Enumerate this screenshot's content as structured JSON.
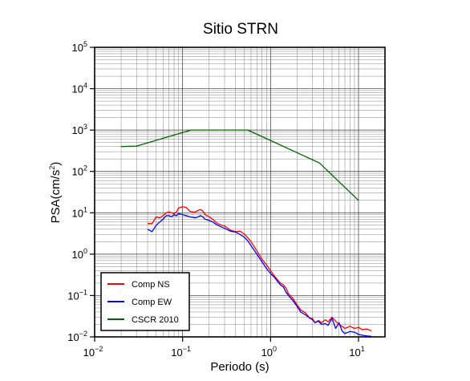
{
  "chart_data": {
    "type": "line",
    "title": "Sitio STRN",
    "xlabel": "Periodo (s)",
    "ylabel": "PSA(cm/s2)",
    "x_scale": "log",
    "y_scale": "log",
    "xlim": [
      0.01,
      20
    ],
    "ylim": [
      0.01,
      100000
    ],
    "x_ticks": [
      0.01,
      0.1,
      1,
      10
    ],
    "y_ticks": [
      0.01,
      0.1,
      1,
      10,
      100,
      1000,
      10000,
      100000
    ],
    "grid": true,
    "legend_position": "bottom-left",
    "series": [
      {
        "name": "Comp NS",
        "color": "#ff0000",
        "points": [
          [
            0.04,
            5.5
          ],
          [
            0.045,
            5.5
          ],
          [
            0.05,
            8
          ],
          [
            0.055,
            7.5
          ],
          [
            0.06,
            8.5
          ],
          [
            0.065,
            10
          ],
          [
            0.07,
            10.5
          ],
          [
            0.075,
            10
          ],
          [
            0.08,
            9.5
          ],
          [
            0.085,
            10.5
          ],
          [
            0.09,
            13
          ],
          [
            0.1,
            14
          ],
          [
            0.11,
            13.5
          ],
          [
            0.12,
            11
          ],
          [
            0.13,
            10.5
          ],
          [
            0.14,
            10.5
          ],
          [
            0.15,
            11.5
          ],
          [
            0.16,
            12
          ],
          [
            0.17,
            11
          ],
          [
            0.18,
            9
          ],
          [
            0.2,
            8
          ],
          [
            0.22,
            7
          ],
          [
            0.25,
            5.5
          ],
          [
            0.28,
            5
          ],
          [
            0.3,
            4.8
          ],
          [
            0.35,
            3.8
          ],
          [
            0.4,
            3.5
          ],
          [
            0.45,
            3.6
          ],
          [
            0.5,
            3.1
          ],
          [
            0.55,
            2.5
          ],
          [
            0.6,
            2.0
          ],
          [
            0.7,
            1.2
          ],
          [
            0.8,
            0.75
          ],
          [
            0.9,
            0.55
          ],
          [
            1.0,
            0.4
          ],
          [
            1.1,
            0.3
          ],
          [
            1.2,
            0.24
          ],
          [
            1.3,
            0.2
          ],
          [
            1.4,
            0.18
          ],
          [
            1.5,
            0.15
          ],
          [
            1.6,
            0.11
          ],
          [
            1.8,
            0.085
          ],
          [
            2.0,
            0.06
          ],
          [
            2.2,
            0.045
          ],
          [
            2.5,
            0.038
          ],
          [
            2.8,
            0.028
          ],
          [
            3.0,
            0.028
          ],
          [
            3.2,
            0.022
          ],
          [
            3.5,
            0.025
          ],
          [
            3.8,
            0.022
          ],
          [
            4.2,
            0.026
          ],
          [
            4.5,
            0.023
          ],
          [
            5.0,
            0.03
          ],
          [
            5.5,
            0.024
          ],
          [
            6.0,
            0.02
          ],
          [
            6.5,
            0.018
          ],
          [
            7.0,
            0.016
          ],
          [
            8.0,
            0.018
          ],
          [
            9.0,
            0.016
          ],
          [
            10.0,
            0.017
          ],
          [
            11.0,
            0.015
          ],
          [
            12.5,
            0.0155
          ],
          [
            14.0,
            0.014
          ]
        ]
      },
      {
        "name": "Comp EW",
        "color": "#0000ff",
        "points": [
          [
            0.04,
            4.0
          ],
          [
            0.045,
            3.5
          ],
          [
            0.05,
            5.0
          ],
          [
            0.055,
            6.0
          ],
          [
            0.06,
            7.0
          ],
          [
            0.065,
            8.5
          ],
          [
            0.07,
            8.5
          ],
          [
            0.075,
            8.0
          ],
          [
            0.08,
            9.0
          ],
          [
            0.085,
            8.5
          ],
          [
            0.09,
            9.5
          ],
          [
            0.1,
            9.0
          ],
          [
            0.11,
            8.5
          ],
          [
            0.12,
            8.0
          ],
          [
            0.13,
            7.8
          ],
          [
            0.14,
            7.5
          ],
          [
            0.15,
            8.0
          ],
          [
            0.16,
            8.5
          ],
          [
            0.17,
            8.0
          ],
          [
            0.18,
            7.0
          ],
          [
            0.2,
            6.5
          ],
          [
            0.22,
            6.0
          ],
          [
            0.25,
            5.0
          ],
          [
            0.28,
            4.5
          ],
          [
            0.3,
            4.2
          ],
          [
            0.35,
            3.6
          ],
          [
            0.4,
            3.4
          ],
          [
            0.45,
            3.0
          ],
          [
            0.5,
            2.6
          ],
          [
            0.55,
            2.1
          ],
          [
            0.6,
            1.6
          ],
          [
            0.7,
            1.0
          ],
          [
            0.8,
            0.65
          ],
          [
            0.9,
            0.45
          ],
          [
            1.0,
            0.34
          ],
          [
            1.1,
            0.28
          ],
          [
            1.2,
            0.22
          ],
          [
            1.3,
            0.18
          ],
          [
            1.4,
            0.16
          ],
          [
            1.5,
            0.12
          ],
          [
            1.6,
            0.1
          ],
          [
            1.8,
            0.075
          ],
          [
            2.0,
            0.055
          ],
          [
            2.2,
            0.04
          ],
          [
            2.5,
            0.034
          ],
          [
            2.8,
            0.028
          ],
          [
            3.0,
            0.026
          ],
          [
            3.2,
            0.022
          ],
          [
            3.5,
            0.024
          ],
          [
            3.8,
            0.02
          ],
          [
            4.2,
            0.021
          ],
          [
            4.5,
            0.019
          ],
          [
            5.0,
            0.028
          ],
          [
            5.5,
            0.016
          ],
          [
            6.0,
            0.022
          ],
          [
            6.5,
            0.014
          ],
          [
            7.0,
            0.012
          ],
          [
            8.0,
            0.0135
          ],
          [
            9.0,
            0.013
          ],
          [
            10.0,
            0.0115
          ],
          [
            11.0,
            0.011
          ],
          [
            12.5,
            0.0105
          ],
          [
            14.0,
            0.0103
          ]
        ]
      },
      {
        "name": "CSCR 2010",
        "color": "#006400",
        "points": [
          [
            0.02,
            400
          ],
          [
            0.03,
            410
          ],
          [
            0.125,
            1000
          ],
          [
            0.55,
            1000
          ],
          [
            3.6,
            160
          ],
          [
            10.0,
            20
          ]
        ]
      }
    ]
  }
}
